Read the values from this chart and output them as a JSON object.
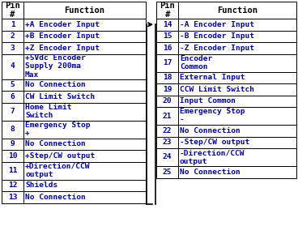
{
  "background_color": "#ffffff",
  "header_text_color": "#000000",
  "cell_text_color": "#0000aa",
  "line_color": "#000000",
  "header_font_size": 7.5,
  "cell_font_size": 6.8,
  "left_table": {
    "rows": [
      [
        "1",
        "+A Encoder Input"
      ],
      [
        "2",
        "+B Encoder Input"
      ],
      [
        "3",
        "+Z Encoder Input"
      ],
      [
        "4",
        "+5Vdc Encoder\nSupply 200ma\nMax"
      ],
      [
        "5",
        "No Connection"
      ],
      [
        "6",
        "CW Limit Switch"
      ],
      [
        "7",
        "Home Limit\nSwitch"
      ],
      [
        "8",
        "Emergency Stop\n+"
      ],
      [
        "9",
        "No Connection"
      ],
      [
        "10",
        "+Step/CW output"
      ],
      [
        "11",
        "+Direction/CCW\noutput"
      ],
      [
        "12",
        "Shields"
      ],
      [
        "13",
        "No Connection"
      ]
    ]
  },
  "right_table": {
    "rows": [
      [
        "14",
        "-A Encoder Input"
      ],
      [
        "15",
        "-B Encoder Input"
      ],
      [
        "16",
        "-Z Encoder Input"
      ],
      [
        "17",
        "Encoder\nCommon"
      ],
      [
        "18",
        "External Input"
      ],
      [
        "19",
        "CCW Limit Switch"
      ],
      [
        "20",
        "Input Common"
      ],
      [
        "21",
        "Emergency Stop\n-"
      ],
      [
        "22",
        "No Connection"
      ],
      [
        "23",
        "-Step/CW output"
      ],
      [
        "24",
        "-Direction/CCW\noutput"
      ],
      [
        "25",
        "No Connection"
      ]
    ]
  }
}
